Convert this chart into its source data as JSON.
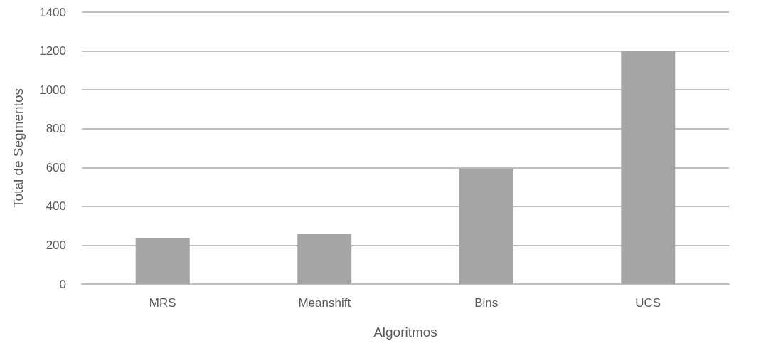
{
  "chart_data": {
    "type": "bar",
    "xlabel": "Algoritmos",
    "ylabel": "Total de Segmentos",
    "categories": [
      "MRS",
      "Meanshift",
      "Bins",
      "UCS"
    ],
    "values": [
      236,
      260,
      595,
      1198
    ],
    "color": "#a5a5a5",
    "ylim": [
      0,
      1400
    ],
    "yticks": [
      0,
      200,
      400,
      600,
      800,
      1000,
      1200,
      1400
    ],
    "grid": "y"
  }
}
